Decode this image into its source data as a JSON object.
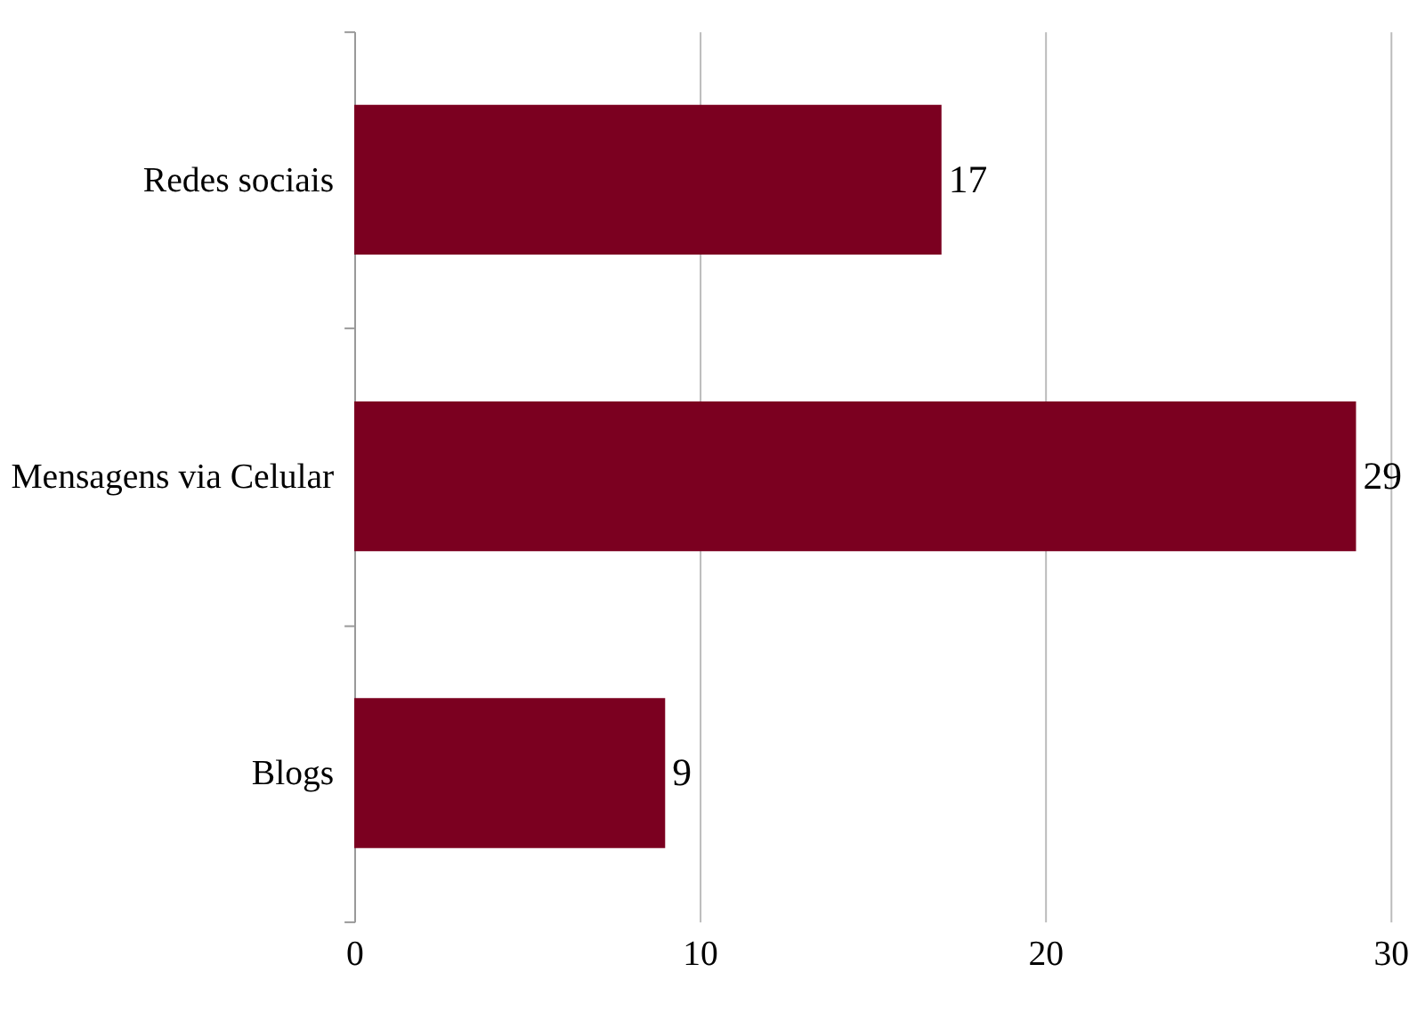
{
  "chart_data": {
    "type": "bar",
    "orientation": "horizontal",
    "categories": [
      "Redes sociais",
      "Mensagens via Celular",
      "Blogs"
    ],
    "values": [
      17,
      29,
      9
    ],
    "color": "#7b0020",
    "xlim": [
      0,
      30
    ],
    "xticks": [
      0,
      10,
      20,
      30
    ],
    "grid": "x",
    "data_labels": true
  }
}
